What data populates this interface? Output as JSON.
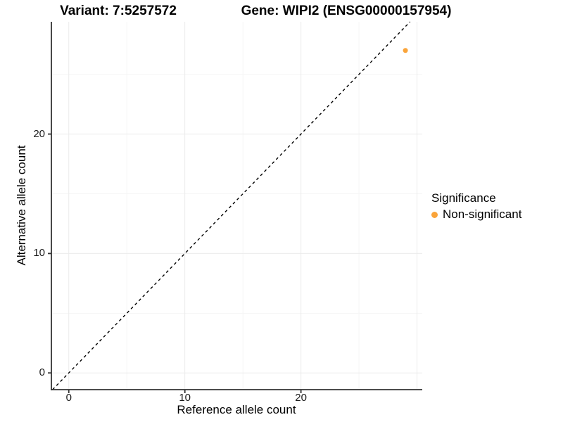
{
  "titles": {
    "variant": "Variant: 7:5257572",
    "gene": "Gene: WIPI2 (ENSG00000157954)"
  },
  "chart_data": {
    "type": "scatter",
    "title": "Variant: 7:5257572   Gene: WIPI2 (ENSG00000157954)",
    "xlabel": "Reference allele count",
    "ylabel": "Alternative allele count",
    "x_ticks": [
      0,
      10,
      20
    ],
    "y_ticks": [
      0,
      10,
      20
    ],
    "x_gridlines_major": [
      0,
      10,
      20,
      30
    ],
    "x_gridlines_minor": [
      5,
      15,
      25
    ],
    "y_gridlines_major": [
      0,
      10,
      20
    ],
    "y_gridlines_minor": [
      5,
      15,
      25
    ],
    "xlim": [
      -1.5,
      30.45
    ],
    "ylim": [
      -1.4,
      29.4
    ],
    "grid": true,
    "series": [
      {
        "name": "Non-significant",
        "color": "#FAA43A",
        "points": [
          {
            "x": 29,
            "y": 27
          }
        ]
      }
    ],
    "reference_line": {
      "meaning": "identity y = x",
      "style": "dashed",
      "color": "#000000",
      "points": [
        {
          "x": -1.4,
          "y": -1.4
        },
        {
          "x": 29.4,
          "y": 29.4
        }
      ]
    },
    "legend": {
      "title": "Significance",
      "position": "right",
      "entries": [
        {
          "label": "Non-significant",
          "color": "#FAA43A"
        }
      ]
    }
  },
  "colors": {
    "background": "#FFFFFF",
    "axis_line": "#333333",
    "grid_major": "#EBEBEB",
    "grid_minor": "#F5F5F5",
    "point": "#FAA43A",
    "text": "#000000"
  }
}
